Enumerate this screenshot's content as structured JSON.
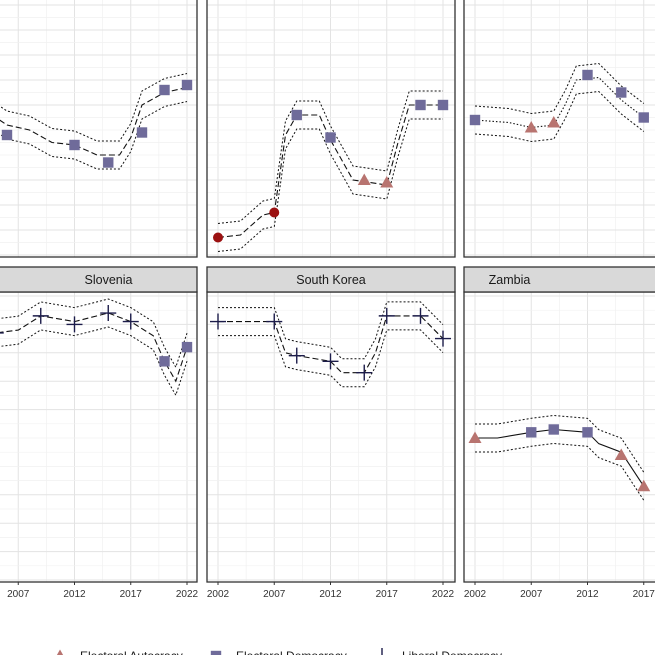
{
  "chart_data": {
    "type": "line",
    "title": "",
    "xlabel": "",
    "ylabel": "",
    "x_ticks": [
      2002,
      2007,
      2012,
      2017,
      2022
    ],
    "xlim": [
      2001,
      2023
    ],
    "ylim": [
      0,
      1
    ],
    "grid": true,
    "legend_position": "bottom",
    "regime_colors": {
      "Closed Autocracy": "#9b1111",
      "Electoral Autocracy": "#b87470",
      "Electoral Democracy": "#6f6b9a",
      "Liberal Democracy": "#1c1c4a"
    },
    "legend": [
      {
        "label": "Electoral Autocracy",
        "shape": "triangle",
        "color": "#b87470"
      },
      {
        "label": "Electoral Democracy",
        "shape": "square",
        "color": "#6f6b9a"
      },
      {
        "label": "Liberal Democracy",
        "shape": "plus",
        "color": "#1c1c4a"
      }
    ],
    "panels": [
      {
        "name": "",
        "row": 0,
        "col": 0,
        "line_style": "dashed",
        "points": [
          {
            "x": 2004,
            "y": 0.58,
            "regime": "Electoral Democracy"
          },
          {
            "x": 2006,
            "y": 0.52,
            "regime": "Electoral Democracy"
          },
          {
            "x": 2008,
            "y": 0.5,
            "regime": "Electoral Democracy"
          },
          {
            "x": 2010,
            "y": 0.45,
            "regime": "Electoral Democracy"
          },
          {
            "x": 2012,
            "y": 0.44,
            "regime": "Electoral Democracy"
          },
          {
            "x": 2014,
            "y": 0.4,
            "regime": "Electoral Democracy"
          },
          {
            "x": 2016,
            "y": 0.4,
            "regime": "Electoral Democracy"
          },
          {
            "x": 2017,
            "y": 0.47,
            "regime": "Electoral Democracy"
          },
          {
            "x": 2018,
            "y": 0.6,
            "regime": "Electoral Democracy"
          },
          {
            "x": 2020,
            "y": 0.65,
            "regime": "Electoral Democracy"
          },
          {
            "x": 2022,
            "y": 0.67,
            "regime": "Electoral Democracy"
          }
        ],
        "markers": [
          {
            "x": 2003,
            "y": 0.58,
            "regime": "Electoral Democracy"
          },
          {
            "x": 2006,
            "y": 0.48,
            "regime": "Electoral Democracy"
          },
          {
            "x": 2012,
            "y": 0.44,
            "regime": "Electoral Democracy"
          },
          {
            "x": 2015,
            "y": 0.37,
            "regime": "Electoral Democracy"
          },
          {
            "x": 2018,
            "y": 0.49,
            "regime": "Electoral Democracy"
          },
          {
            "x": 2020,
            "y": 0.66,
            "regime": "Electoral Democracy"
          },
          {
            "x": 2022,
            "y": 0.68,
            "regime": "Electoral Democracy"
          }
        ]
      },
      {
        "name": "",
        "row": 0,
        "col": 1,
        "line_style": "dashed",
        "points": [
          {
            "x": 2002,
            "y": 0.07,
            "regime": "Closed Autocracy"
          },
          {
            "x": 2004,
            "y": 0.08,
            "regime": "Closed Autocracy"
          },
          {
            "x": 2006,
            "y": 0.16,
            "regime": "Closed Autocracy"
          },
          {
            "x": 2007,
            "y": 0.17,
            "regime": "Closed Autocracy"
          },
          {
            "x": 2008,
            "y": 0.48,
            "regime": "Electoral Democracy"
          },
          {
            "x": 2009,
            "y": 0.56,
            "regime": "Electoral Democracy"
          },
          {
            "x": 2011,
            "y": 0.56,
            "regime": "Electoral Democracy"
          },
          {
            "x": 2012,
            "y": 0.46,
            "regime": "Electoral Democracy"
          },
          {
            "x": 2014,
            "y": 0.3,
            "regime": "Electoral Autocracy"
          },
          {
            "x": 2017,
            "y": 0.28,
            "regime": "Electoral Autocracy"
          },
          {
            "x": 2018,
            "y": 0.45,
            "regime": "Electoral Democracy"
          },
          {
            "x": 2019,
            "y": 0.6,
            "regime": "Electoral Democracy"
          },
          {
            "x": 2022,
            "y": 0.6,
            "regime": "Electoral Democracy"
          }
        ],
        "markers": [
          {
            "x": 2002,
            "y": 0.07,
            "regime": "Closed Autocracy"
          },
          {
            "x": 2007,
            "y": 0.17,
            "regime": "Closed Autocracy"
          },
          {
            "x": 2009,
            "y": 0.56,
            "regime": "Electoral Democracy"
          },
          {
            "x": 2012,
            "y": 0.47,
            "regime": "Electoral Democracy"
          },
          {
            "x": 2015,
            "y": 0.3,
            "regime": "Electoral Autocracy"
          },
          {
            "x": 2017,
            "y": 0.29,
            "regime": "Electoral Autocracy"
          },
          {
            "x": 2020,
            "y": 0.6,
            "regime": "Electoral Democracy"
          },
          {
            "x": 2022,
            "y": 0.6,
            "regime": "Electoral Democracy"
          }
        ]
      },
      {
        "name": "",
        "row": 0,
        "col": 2,
        "line_style": "dotted",
        "points": [
          {
            "x": 2002,
            "y": 0.54,
            "regime": "Electoral Democracy"
          },
          {
            "x": 2005,
            "y": 0.53,
            "regime": "Electoral Democracy"
          },
          {
            "x": 2007,
            "y": 0.51,
            "regime": "Electoral Autocracy"
          },
          {
            "x": 2009,
            "y": 0.52,
            "regime": "Electoral Autocracy"
          },
          {
            "x": 2010,
            "y": 0.6,
            "regime": "Electoral Democracy"
          },
          {
            "x": 2011,
            "y": 0.7,
            "regime": "Electoral Democracy"
          },
          {
            "x": 2013,
            "y": 0.71,
            "regime": "Electoral Democracy"
          },
          {
            "x": 2015,
            "y": 0.62,
            "regime": "Electoral Democracy"
          },
          {
            "x": 2017,
            "y": 0.55,
            "regime": "Electoral Democracy"
          }
        ],
        "markers": [
          {
            "x": 2002,
            "y": 0.54,
            "regime": "Electoral Democracy"
          },
          {
            "x": 2007,
            "y": 0.51,
            "regime": "Electoral Autocracy"
          },
          {
            "x": 2009,
            "y": 0.53,
            "regime": "Electoral Autocracy"
          },
          {
            "x": 2012,
            "y": 0.72,
            "regime": "Electoral Democracy"
          },
          {
            "x": 2015,
            "y": 0.65,
            "regime": "Electoral Democracy"
          },
          {
            "x": 2017,
            "y": 0.55,
            "regime": "Electoral Democracy"
          }
        ]
      },
      {
        "name": "Slovenia",
        "row": 1,
        "col": 0,
        "line_style": "dashed",
        "points": [
          {
            "x": 2002,
            "y": 0.85,
            "regime": "Liberal Democracy"
          },
          {
            "x": 2005,
            "y": 0.87,
            "regime": "Liberal Democracy"
          },
          {
            "x": 2007,
            "y": 0.88,
            "regime": "Liberal Democracy"
          },
          {
            "x": 2009,
            "y": 0.93,
            "regime": "Liberal Democracy"
          },
          {
            "x": 2012,
            "y": 0.91,
            "regime": "Liberal Democracy"
          },
          {
            "x": 2015,
            "y": 0.94,
            "regime": "Liberal Democracy"
          },
          {
            "x": 2017,
            "y": 0.91,
            "regime": "Liberal Democracy"
          },
          {
            "x": 2019,
            "y": 0.86,
            "regime": "Electoral Democracy"
          },
          {
            "x": 2020,
            "y": 0.77,
            "regime": "Electoral Democracy"
          },
          {
            "x": 2021,
            "y": 0.7,
            "regime": "Electoral Democracy"
          },
          {
            "x": 2022,
            "y": 0.82,
            "regime": "Electoral Democracy"
          }
        ],
        "markers": [
          {
            "x": 2005,
            "y": 0.87,
            "regime": "Liberal Democracy"
          },
          {
            "x": 2009,
            "y": 0.93,
            "regime": "Liberal Democracy"
          },
          {
            "x": 2012,
            "y": 0.9,
            "regime": "Liberal Democracy"
          },
          {
            "x": 2015,
            "y": 0.94,
            "regime": "Liberal Democracy"
          },
          {
            "x": 2017,
            "y": 0.91,
            "regime": "Liberal Democracy"
          },
          {
            "x": 2020,
            "y": 0.77,
            "regime": "Electoral Democracy"
          },
          {
            "x": 2022,
            "y": 0.82,
            "regime": "Electoral Democracy"
          }
        ]
      },
      {
        "name": "South Korea",
        "row": 1,
        "col": 1,
        "line_style": "dashed",
        "points": [
          {
            "x": 2002,
            "y": 0.91,
            "regime": "Liberal Democracy"
          },
          {
            "x": 2007,
            "y": 0.91,
            "regime": "Liberal Democracy"
          },
          {
            "x": 2008,
            "y": 0.8,
            "regime": "Liberal Democracy"
          },
          {
            "x": 2009,
            "y": 0.79,
            "regime": "Liberal Democracy"
          },
          {
            "x": 2012,
            "y": 0.77,
            "regime": "Liberal Democracy"
          },
          {
            "x": 2013,
            "y": 0.73,
            "regime": "Liberal Democracy"
          },
          {
            "x": 2015,
            "y": 0.73,
            "regime": "Liberal Democracy"
          },
          {
            "x": 2016,
            "y": 0.8,
            "regime": "Liberal Democracy"
          },
          {
            "x": 2017,
            "y": 0.93,
            "regime": "Liberal Democracy"
          },
          {
            "x": 2020,
            "y": 0.93,
            "regime": "Liberal Democracy"
          },
          {
            "x": 2022,
            "y": 0.85,
            "regime": "Liberal Democracy"
          }
        ],
        "markers": [
          {
            "x": 2002,
            "y": 0.91,
            "regime": "Liberal Democracy"
          },
          {
            "x": 2007,
            "y": 0.91,
            "regime": "Liberal Democracy"
          },
          {
            "x": 2009,
            "y": 0.79,
            "regime": "Liberal Democracy"
          },
          {
            "x": 2012,
            "y": 0.77,
            "regime": "Liberal Democracy"
          },
          {
            "x": 2015,
            "y": 0.73,
            "regime": "Liberal Democracy"
          },
          {
            "x": 2017,
            "y": 0.93,
            "regime": "Liberal Democracy"
          },
          {
            "x": 2020,
            "y": 0.93,
            "regime": "Liberal Democracy"
          },
          {
            "x": 2022,
            "y": 0.85,
            "regime": "Liberal Democracy"
          }
        ]
      },
      {
        "name": "Zambia",
        "row": 1,
        "col": 2,
        "line_style": "solid",
        "points": [
          {
            "x": 2002,
            "y": 0.5,
            "regime": "Electoral Autocracy"
          },
          {
            "x": 2004,
            "y": 0.5,
            "regime": "Electoral Democracy"
          },
          {
            "x": 2007,
            "y": 0.52,
            "regime": "Electoral Democracy"
          },
          {
            "x": 2009,
            "y": 0.53,
            "regime": "Electoral Democracy"
          },
          {
            "x": 2012,
            "y": 0.52,
            "regime": "Electoral Democracy"
          },
          {
            "x": 2013,
            "y": 0.48,
            "regime": "Electoral Democracy"
          },
          {
            "x": 2015,
            "y": 0.45,
            "regime": "Electoral Autocracy"
          },
          {
            "x": 2017,
            "y": 0.33,
            "regime": "Electoral Autocracy"
          }
        ],
        "markers": [
          {
            "x": 2002,
            "y": 0.5,
            "regime": "Electoral Autocracy"
          },
          {
            "x": 2007,
            "y": 0.52,
            "regime": "Electoral Democracy"
          },
          {
            "x": 2009,
            "y": 0.53,
            "regime": "Electoral Democracy"
          },
          {
            "x": 2012,
            "y": 0.52,
            "regime": "Electoral Democracy"
          },
          {
            "x": 2015,
            "y": 0.44,
            "regime": "Electoral Autocracy"
          },
          {
            "x": 2017,
            "y": 0.33,
            "regime": "Electoral Autocracy"
          }
        ]
      }
    ]
  }
}
